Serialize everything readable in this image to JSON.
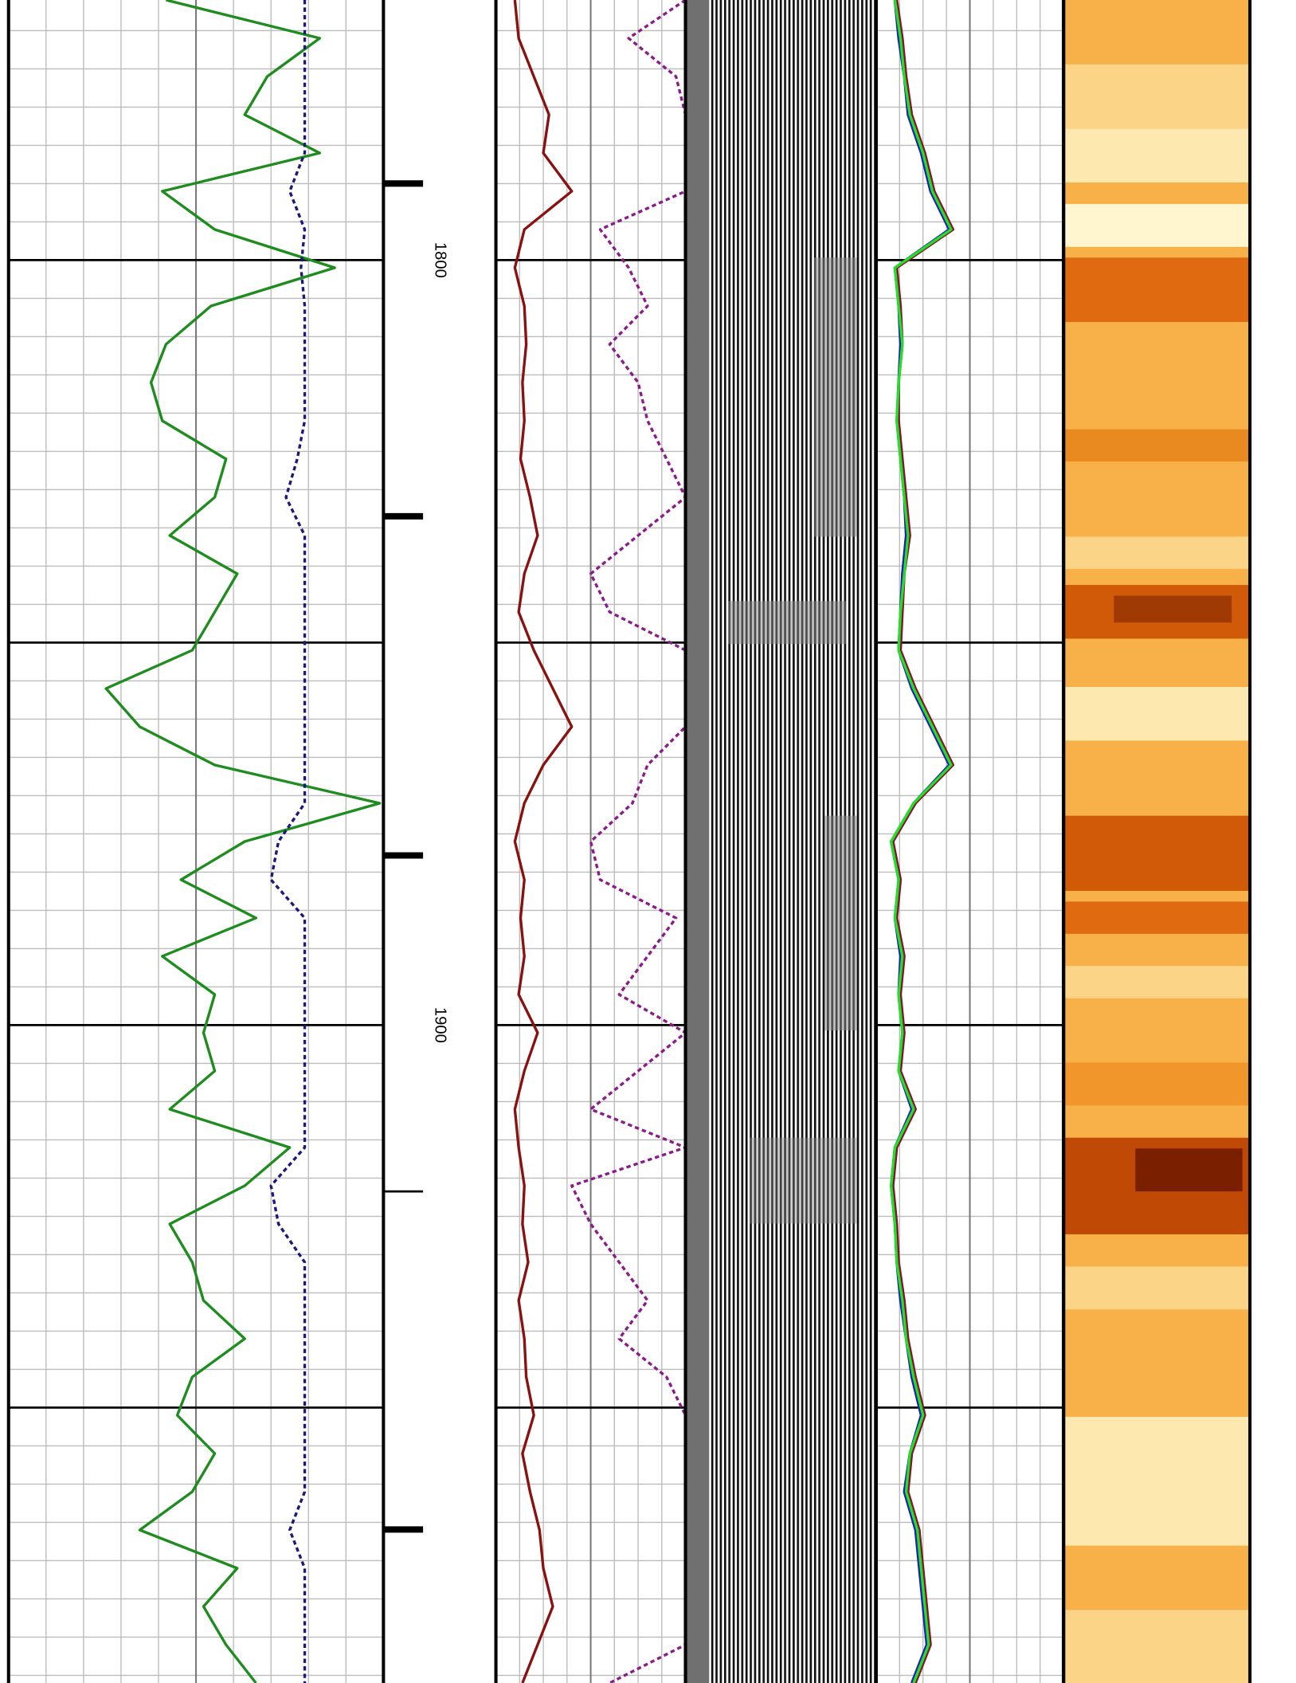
{
  "chart_data": [
    {
      "type": "line",
      "ylim": [
        1766,
        1986
      ],
      "xlim": [
        0,
        100
      ],
      "xticks": [
        0,
        10,
        20,
        30,
        40,
        50,
        60,
        70,
        80,
        90,
        100
      ],
      "yticks": [
        1800,
        1850,
        1900,
        1950
      ],
      "yminorticks": [
        1770,
        1775,
        1780,
        1785,
        1790,
        1795,
        1805,
        1810,
        1815,
        1820,
        1825,
        1830,
        1835,
        1840,
        1845,
        1855,
        1860,
        1865,
        1870,
        1875,
        1880,
        1885,
        1890,
        1895,
        1905,
        1910,
        1915,
        1920,
        1925,
        1930,
        1935,
        1940,
        1945,
        1955,
        1960,
        1965,
        1970,
        1975,
        1980,
        1985
      ],
      "y": [
        1766,
        1771,
        1776,
        1781,
        1786,
        1791,
        1796,
        1801,
        1806,
        1811,
        1816,
        1821,
        1826,
        1831,
        1836,
        1841,
        1846,
        1851,
        1856,
        1861,
        1866,
        1871,
        1876,
        1881,
        1886,
        1891,
        1896,
        1901,
        1906,
        1911,
        1916,
        1921,
        1926,
        1931,
        1936,
        1941,
        1946,
        1951,
        1956,
        1961,
        1966,
        1971,
        1976,
        1981,
        1986
      ],
      "series": [
        {
          "color": "#1e8c1e",
          "dash": false,
          "values": [
            42,
            83,
            69,
            63,
            83,
            41,
            55,
            87,
            54,
            42,
            38,
            41,
            58,
            55,
            43,
            61,
            55,
            49,
            26,
            35,
            55,
            99,
            63,
            46,
            66,
            41,
            55,
            52,
            55,
            43,
            75,
            63,
            43,
            49,
            52,
            63,
            49,
            45,
            55,
            49,
            35,
            61,
            52,
            58,
            66
          ]
        },
        {
          "color": "#1a1a7a",
          "dash": true,
          "values": [
            79,
            79,
            79,
            79,
            79,
            75,
            79,
            78,
            79,
            79,
            79,
            79,
            77,
            74,
            79,
            79,
            79,
            79,
            79,
            79,
            79,
            79,
            72,
            70,
            79,
            79,
            79,
            79,
            79,
            79,
            79,
            70,
            72,
            79,
            79,
            79,
            79,
            79,
            79,
            79,
            75,
            79,
            79,
            79,
            79
          ]
        }
      ]
    },
    {
      "type": "depth",
      "ylim": [
        1766,
        1986
      ],
      "yticks": [
        1800,
        1900
      ]
    },
    {
      "type": "line",
      "ylim": [
        1766,
        1986
      ],
      "xlim": [
        0,
        100
      ],
      "xticks": [
        0,
        12.5,
        25,
        37.5,
        50,
        62.5,
        75,
        87.5,
        100
      ],
      "yticks": [
        1800,
        1850,
        1900,
        1950
      ],
      "yminorticks": [
        1770,
        1775,
        1780,
        1785,
        1790,
        1795,
        1805,
        1810,
        1815,
        1820,
        1825,
        1830,
        1835,
        1840,
        1845,
        1855,
        1860,
        1865,
        1870,
        1875,
        1880,
        1885,
        1890,
        1895,
        1905,
        1910,
        1915,
        1920,
        1925,
        1930,
        1935,
        1940,
        1945,
        1955,
        1960,
        1965,
        1970,
        1975,
        1980,
        1985
      ],
      "y": [
        1766,
        1771,
        1776,
        1781,
        1786,
        1791,
        1796,
        1801,
        1806,
        1811,
        1816,
        1821,
        1826,
        1831,
        1836,
        1841,
        1846,
        1851,
        1856,
        1861,
        1866,
        1871,
        1876,
        1881,
        1886,
        1891,
        1896,
        1901,
        1906,
        1911,
        1916,
        1921,
        1926,
        1931,
        1936,
        1941,
        1946,
        1951,
        1956,
        1961,
        1966,
        1971,
        1976,
        1981,
        1986
      ],
      "series": [
        {
          "color": "#8b1010",
          "dash": false,
          "values": [
            10,
            12,
            20,
            28,
            25,
            40,
            15,
            10,
            15,
            16,
            14,
            15,
            13,
            18,
            22,
            15,
            12,
            20,
            30,
            40,
            25,
            15,
            10,
            15,
            13,
            15,
            12,
            22,
            15,
            10,
            12,
            15,
            14,
            17,
            12,
            15,
            16,
            20,
            14,
            18,
            23,
            25,
            30,
            22,
            14
          ]
        },
        {
          "color": "#8b1a8b",
          "dash": true,
          "values": [
            100,
            70,
            95,
            100,
            100,
            100,
            55,
            70,
            80,
            60,
            75,
            80,
            90,
            100,
            75,
            50,
            60,
            100,
            100,
            100,
            80,
            72,
            50,
            55,
            95,
            80,
            65,
            100,
            75,
            50,
            100,
            40,
            50,
            65,
            80,
            65,
            90,
            100,
            100,
            100,
            100,
            100,
            100,
            100,
            60
          ]
        }
      ]
    },
    {
      "type": "line",
      "ylim": [
        1766,
        1986
      ],
      "xlim": [
        0,
        100
      ],
      "xticks": [
        0,
        12.5,
        25,
        37.5,
        50,
        62.5,
        75,
        87.5,
        100
      ],
      "yticks": [
        1800,
        1850,
        1900,
        1950
      ],
      "yminorticks": [
        1770,
        1775,
        1780,
        1785,
        1790,
        1795,
        1805,
        1810,
        1815,
        1820,
        1825,
        1830,
        1835,
        1840,
        1845,
        1855,
        1860,
        1865,
        1870,
        1875,
        1880,
        1885,
        1890,
        1895,
        1905,
        1910,
        1915,
        1920,
        1925,
        1930,
        1935,
        1940,
        1945,
        1955,
        1960,
        1965,
        1970,
        1975,
        1980,
        1985
      ],
      "y": [
        1766,
        1771,
        1776,
        1781,
        1786,
        1791,
        1796,
        1801,
        1806,
        1811,
        1816,
        1821,
        1826,
        1831,
        1836,
        1841,
        1846,
        1851,
        1856,
        1861,
        1866,
        1871,
        1876,
        1881,
        1886,
        1891,
        1896,
        1901,
        1906,
        1911,
        1916,
        1921,
        1926,
        1931,
        1936,
        1941,
        1946,
        1951,
        1956,
        1961,
        1966,
        1971,
        1976,
        1981,
        1986
      ],
      "series": [
        {
          "color": "#8b1030",
          "dash": false,
          "values": [
            11,
            14,
            16,
            19,
            26,
            31,
            41,
            11,
            13,
            14,
            12,
            12,
            14,
            16,
            18,
            15,
            14,
            13,
            21,
            31,
            41,
            21,
            9,
            13,
            11,
            15,
            13,
            15,
            13,
            21,
            11,
            9,
            11,
            12,
            15,
            17,
            21,
            26,
            19,
            17,
            23,
            25,
            27,
            29,
            21
          ]
        },
        {
          "color": "#2020c0",
          "dash": false,
          "values": [
            10,
            12,
            15,
            17,
            24,
            29,
            39,
            10,
            12,
            13,
            12,
            11,
            13,
            15,
            16,
            14,
            13,
            12,
            19,
            29,
            39,
            20,
            8,
            12,
            10,
            13,
            12,
            14,
            12,
            19,
            10,
            8,
            10,
            11,
            13,
            16,
            19,
            24,
            18,
            15,
            21,
            23,
            25,
            27,
            19
          ]
        },
        {
          "color": "#22e022",
          "dash": false,
          "values": [
            10,
            13,
            15,
            18,
            25,
            30,
            40,
            10,
            12,
            14,
            12,
            11,
            13,
            15,
            17,
            15,
            13,
            12,
            20,
            30,
            40,
            20,
            8,
            12,
            10,
            14,
            12,
            14,
            12,
            20,
            10,
            8,
            10,
            11,
            14,
            16,
            20,
            25,
            18,
            16,
            22,
            24,
            26,
            28,
            20
          ]
        }
      ]
    }
  ]
}
